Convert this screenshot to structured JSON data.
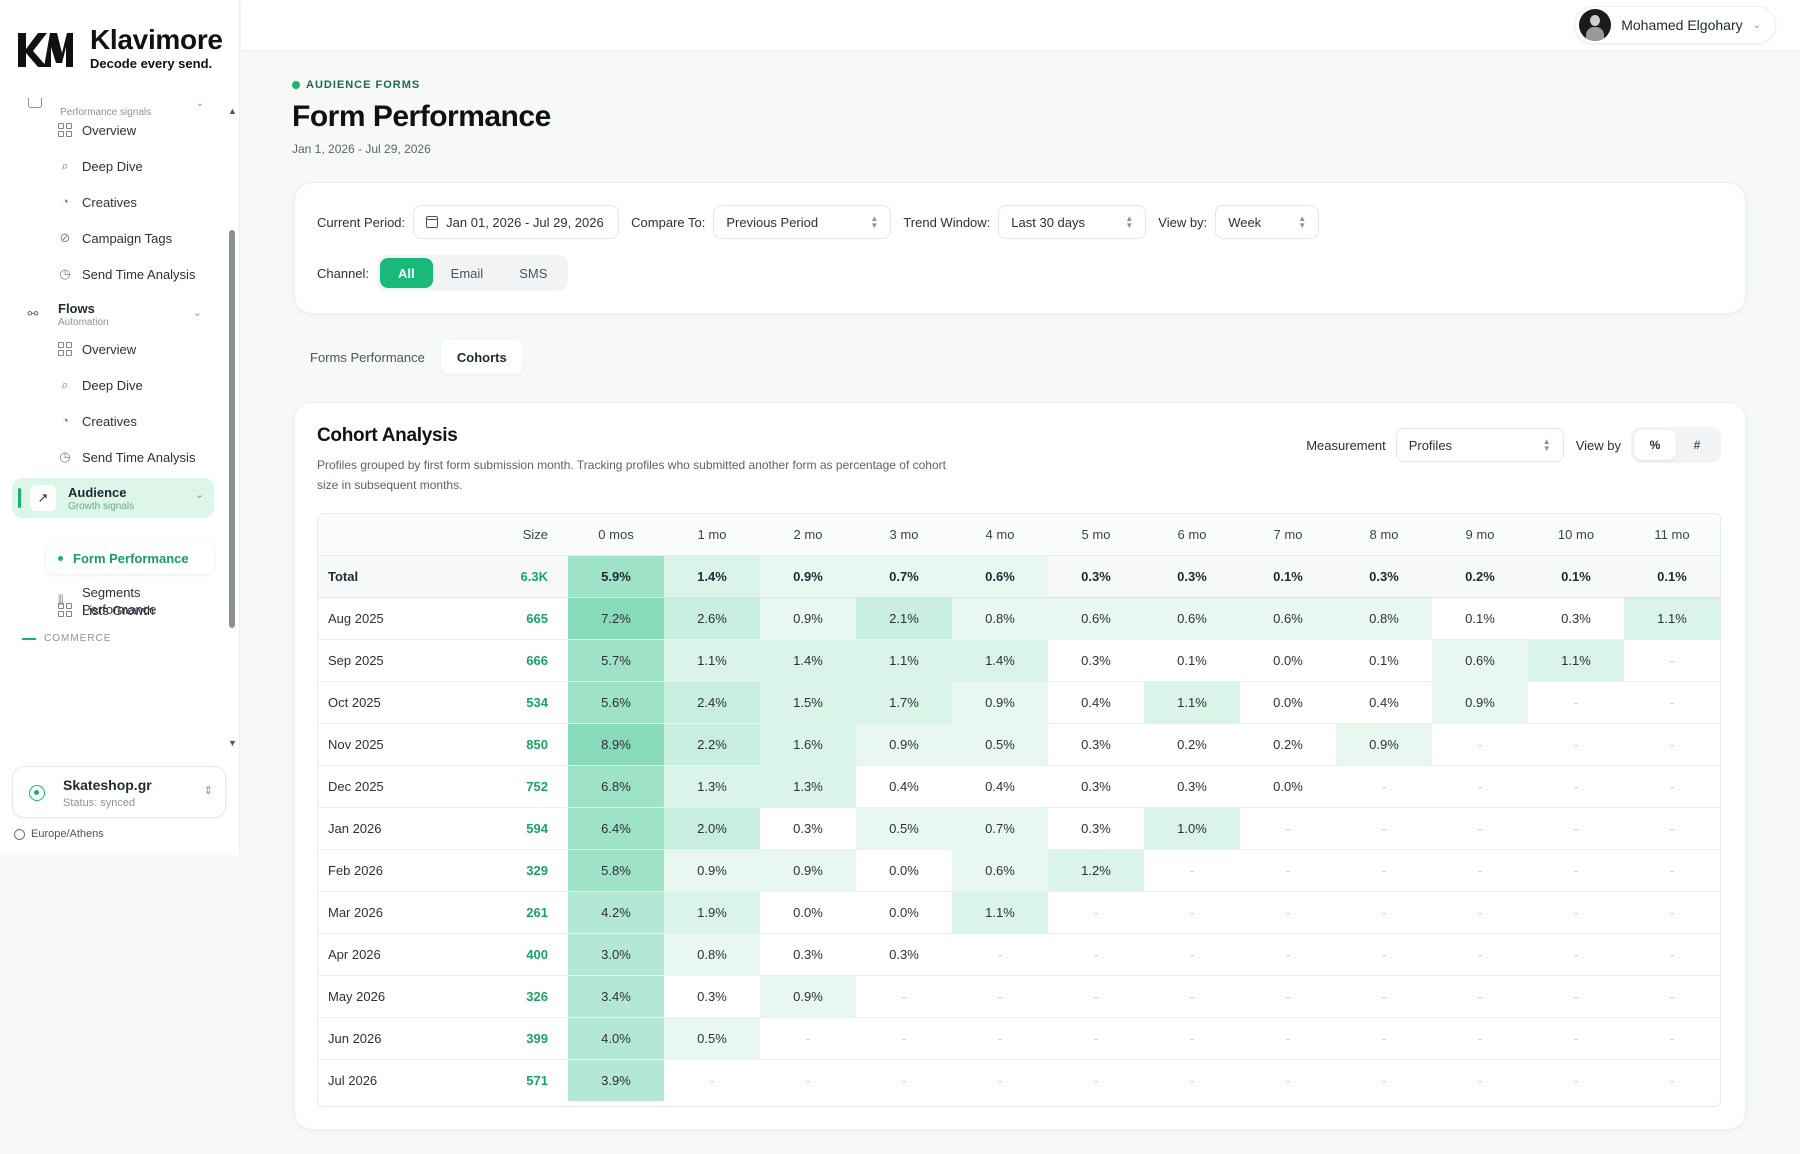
{
  "brand": {
    "name": "Klavimore",
    "tagline": "Decode every send."
  },
  "user": {
    "name": "Mohamed Elgohary"
  },
  "sidebar": {
    "cut_group_subtitle": "Performance signals",
    "campaign_items": [
      {
        "label": "Overview",
        "icon": "grid-icon"
      },
      {
        "label": "Deep Dive",
        "icon": "search-icon"
      },
      {
        "label": "Creatives",
        "icon": "palette-icon"
      },
      {
        "label": "Campaign Tags",
        "icon": "tag-icon"
      },
      {
        "label": "Send Time Analysis",
        "icon": "clock-icon"
      }
    ],
    "flows": {
      "label": "Flows",
      "subtitle": "Automation"
    },
    "flow_items": [
      {
        "label": "Overview",
        "icon": "grid-icon"
      },
      {
        "label": "Deep Dive",
        "icon": "search-icon"
      },
      {
        "label": "Creatives",
        "icon": "palette-icon"
      },
      {
        "label": "Send Time Analysis",
        "icon": "clock-icon"
      }
    ],
    "audience": {
      "label": "Audience",
      "subtitle": "Growth signals"
    },
    "audience_items": {
      "lists_growth": "Lists Growth",
      "form_performance": "Form Performance",
      "segments_line1": "Segments",
      "segments_line2": "Performance"
    },
    "commerce_label": "COMMERCE",
    "store": {
      "name": "Skateshop.gr",
      "status": "Status: synced"
    },
    "timezone": "Europe/Athens"
  },
  "header": {
    "eyebrow": "AUDIENCE FORMS",
    "title": "Form Performance",
    "date_range": "Jan 1, 2026 - Jul 29, 2026"
  },
  "filters": {
    "current_period_label": "Current Period:",
    "current_period_value": "Jan 01, 2026 - Jul 29, 2026",
    "compare_label": "Compare To:",
    "compare_value": "Previous Period",
    "trend_label": "Trend Window:",
    "trend_value": "Last 30 days",
    "viewby_label": "View by:",
    "viewby_value": "Week",
    "channel_label": "Channel:",
    "channels": [
      "All",
      "Email",
      "SMS"
    ],
    "channel_selected": "All"
  },
  "tabs": {
    "items": [
      "Forms Performance",
      "Cohorts"
    ],
    "selected": "Cohorts"
  },
  "cohort": {
    "title": "Cohort Analysis",
    "description": "Profiles grouped by first form submission month. Tracking profiles who submitted another form as percentage of cohort size in subsequent months.",
    "measurement_label": "Measurement",
    "measurement_value": "Profiles",
    "viewby_label": "View by",
    "viewby_options": [
      "%",
      "#"
    ],
    "viewby_selected": "%",
    "size_header": "Size",
    "columns": [
      "0 mos",
      "1 mo",
      "2 mo",
      "3 mo",
      "4 mo",
      "5 mo",
      "6 mo",
      "7 mo",
      "8 mo",
      "9 mo",
      "10 mo",
      "11 mo"
    ],
    "empty_mark": "-",
    "total": {
      "label": "Total",
      "size": "6.3K",
      "values": [
        "5.9%",
        "1.4%",
        "0.9%",
        "0.7%",
        "0.6%",
        "0.3%",
        "0.3%",
        "0.1%",
        "0.3%",
        "0.2%",
        "0.1%",
        "0.1%"
      ]
    },
    "rows": [
      {
        "label": "Aug 2025",
        "size": "665",
        "values": [
          "7.2%",
          "2.6%",
          "0.9%",
          "2.1%",
          "0.8%",
          "0.6%",
          "0.6%",
          "0.6%",
          "0.8%",
          "0.1%",
          "0.3%",
          "1.1%"
        ]
      },
      {
        "label": "Sep 2025",
        "size": "666",
        "values": [
          "5.7%",
          "1.1%",
          "1.4%",
          "1.1%",
          "1.4%",
          "0.3%",
          "0.1%",
          "0.0%",
          "0.1%",
          "0.6%",
          "1.1%"
        ]
      },
      {
        "label": "Oct 2025",
        "size": "534",
        "values": [
          "5.6%",
          "2.4%",
          "1.5%",
          "1.7%",
          "0.9%",
          "0.4%",
          "1.1%",
          "0.0%",
          "0.4%",
          "0.9%"
        ]
      },
      {
        "label": "Nov 2025",
        "size": "850",
        "values": [
          "8.9%",
          "2.2%",
          "1.6%",
          "0.9%",
          "0.5%",
          "0.3%",
          "0.2%",
          "0.2%",
          "0.9%"
        ]
      },
      {
        "label": "Dec 2025",
        "size": "752",
        "values": [
          "6.8%",
          "1.3%",
          "1.3%",
          "0.4%",
          "0.4%",
          "0.3%",
          "0.3%",
          "0.0%"
        ]
      },
      {
        "label": "Jan 2026",
        "size": "594",
        "values": [
          "6.4%",
          "2.0%",
          "0.3%",
          "0.5%",
          "0.7%",
          "0.3%",
          "1.0%"
        ]
      },
      {
        "label": "Feb 2026",
        "size": "329",
        "values": [
          "5.8%",
          "0.9%",
          "0.9%",
          "0.0%",
          "0.6%",
          "1.2%"
        ]
      },
      {
        "label": "Mar 2026",
        "size": "261",
        "values": [
          "4.2%",
          "1.9%",
          "0.0%",
          "0.0%",
          "1.1%"
        ]
      },
      {
        "label": "Apr 2026",
        "size": "400",
        "values": [
          "3.0%",
          "0.8%",
          "0.3%",
          "0.3%"
        ]
      },
      {
        "label": "May 2026",
        "size": "326",
        "values": [
          "3.4%",
          "0.3%",
          "0.9%"
        ]
      },
      {
        "label": "Jun 2026",
        "size": "399",
        "values": [
          "4.0%",
          "0.5%"
        ]
      },
      {
        "label": "Jul 2026",
        "size": "571",
        "values": [
          "3.9%"
        ]
      }
    ]
  },
  "colors": {
    "accent": "#19b97a",
    "heat_base": "#19b97a",
    "size_text": "#19a562"
  }
}
